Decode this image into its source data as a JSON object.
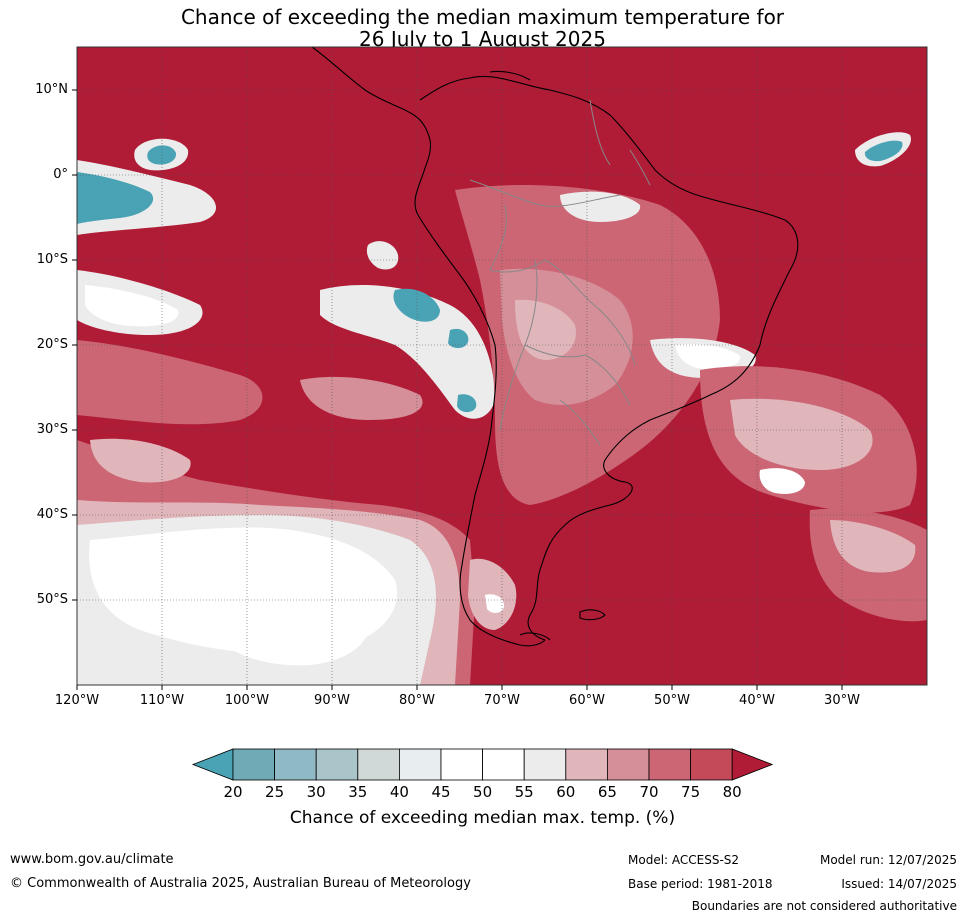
{
  "title": {
    "line1": "Chance of exceeding the median maximum temperature for",
    "line2": "26 July to 1 August 2025"
  },
  "map": {
    "lat_labels": [
      "10°N",
      "0°",
      "10°S",
      "20°S",
      "30°S",
      "40°S",
      "50°S"
    ],
    "lon_labels": [
      "120°W",
      "110°W",
      "100°W",
      "90°W",
      "80°W",
      "70°W",
      "60°W",
      "50°W",
      "40°W",
      "30°W"
    ],
    "colors": {
      "very_high": "#b01c36",
      "high": "#c44a5a",
      "mid_high": "#cc6674",
      "mid": "#d58f98",
      "low_mid": "#e0b6bb",
      "neutral": "#ececec",
      "white": "#ffffff",
      "teal": "#4aa3b5",
      "teal_light": "#8ebfca",
      "grey": "#d0d6d8"
    }
  },
  "colorbar": {
    "ticks": [
      "20",
      "25",
      "30",
      "35",
      "40",
      "45",
      "50",
      "55",
      "60",
      "65",
      "70",
      "75",
      "80"
    ],
    "colors": [
      "#4aa3b5",
      "#6faab6",
      "#8fbac5",
      "#a9c5c9",
      "#d0d8d8",
      "#e8eef0",
      "#ffffff",
      "#ffffff",
      "#ececec",
      "#e0b6bb",
      "#d58f98",
      "#cc6674",
      "#c44a5a",
      "#b01c36"
    ],
    "label": "Chance of exceeding median max. temp. (%)"
  },
  "footer": {
    "website": "www.bom.gov.au/climate",
    "copyright": "© Commonwealth of Australia 2025, Australian Bureau of Meteorology",
    "model": "Model: ACCESS-S2",
    "base_period": "Base period: 1981-2018",
    "model_run": "Model run: 12/07/2025",
    "issued": "Issued: 14/07/2025",
    "disclaimer": "Boundaries are not considered authoritative"
  }
}
